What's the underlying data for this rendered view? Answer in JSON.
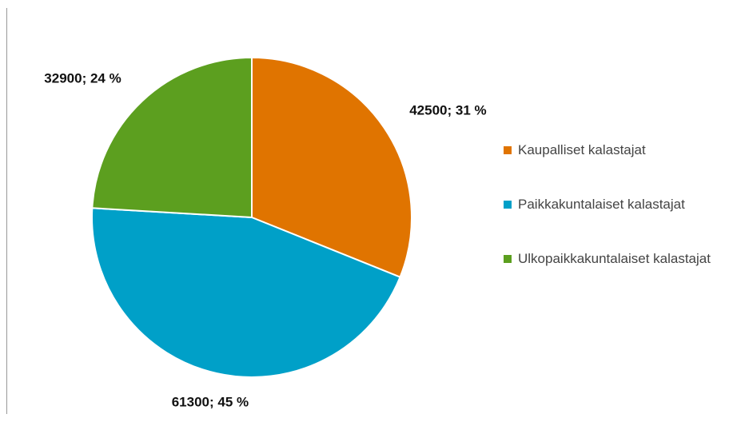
{
  "chart_data": {
    "type": "pie",
    "categories": [
      "Kaupalliset kalastajat",
      "Paikkakuntalaiset kalastajat",
      "Ulkopaikkakuntalaiset kalastajat"
    ],
    "values": [
      42500,
      61300,
      32900
    ],
    "value_labels": [
      "42500; 31 %",
      "61300; 45 %",
      "32900; 24 %"
    ],
    "colors": [
      "#e07400",
      "#00a0c8",
      "#5c9f1f"
    ]
  }
}
